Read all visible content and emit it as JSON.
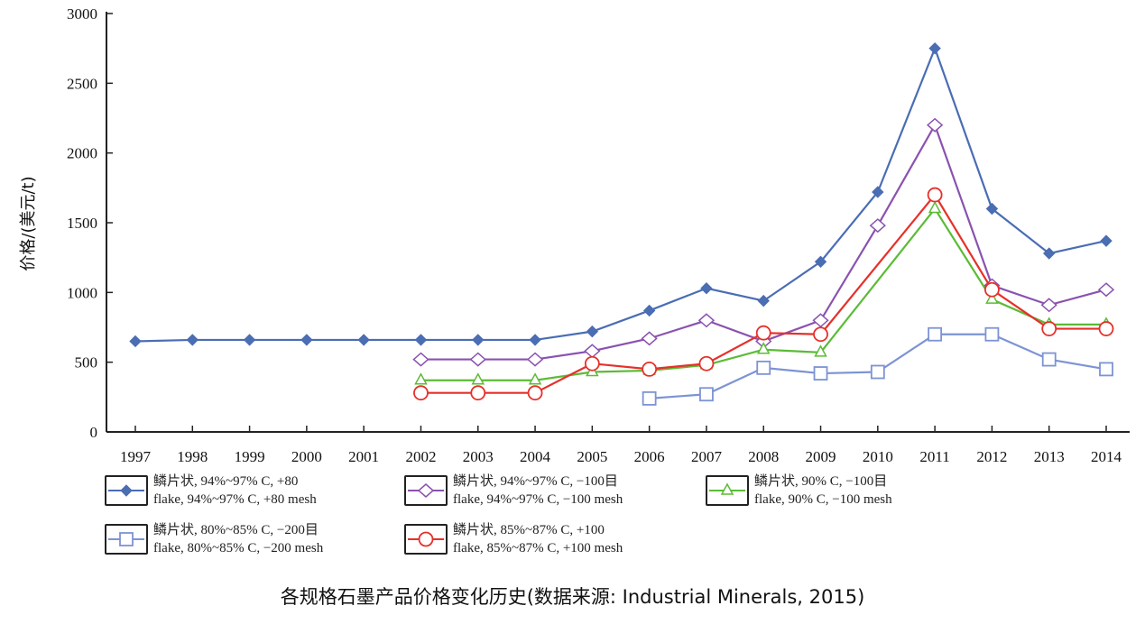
{
  "chart_data": {
    "type": "line",
    "title": "",
    "ylabel": "价格/(美元/t)",
    "xlabel": "",
    "ylim": [
      0,
      3000
    ],
    "yticks": [
      0,
      500,
      1000,
      1500,
      2000,
      2500,
      3000
    ],
    "x": [
      1997,
      1998,
      1999,
      2000,
      2001,
      2002,
      2003,
      2004,
      2005,
      2006,
      2007,
      2008,
      2009,
      2010,
      2011,
      2012,
      2013,
      2014
    ],
    "grid": false,
    "legend_position": "bottom",
    "series": [
      {
        "name_cn": "鳞片状, 94%~97% C, +80",
        "name": "flake, 94%~97% C, +80 mesh",
        "color": "#4a6db3",
        "marker": "filled-diamond",
        "values": [
          650,
          660,
          660,
          660,
          660,
          660,
          660,
          660,
          720,
          870,
          1030,
          940,
          1220,
          1720,
          2750,
          1600,
          1280,
          1370
        ]
      },
      {
        "name_cn": "鳞片状, 94%~97% C, −100目",
        "name": "flake, 94%~97% C, −100 mesh",
        "color": "#8a52b0",
        "marker": "open-diamond",
        "values": [
          null,
          null,
          null,
          null,
          null,
          520,
          520,
          520,
          580,
          670,
          800,
          650,
          800,
          1480,
          2200,
          1050,
          910,
          1020
        ]
      },
      {
        "name_cn": "鳞片状, 90% C, −100目",
        "name": "flake, 90% C, −100 mesh",
        "color": "#5cbb36",
        "marker": "open-triangle",
        "values": [
          null,
          null,
          null,
          null,
          null,
          370,
          370,
          370,
          430,
          440,
          480,
          590,
          570,
          null,
          1600,
          950,
          770,
          770
        ]
      },
      {
        "name_cn": "鳞片状, 80%~85% C, −200目",
        "name": "flake, 80%~85% C, −200 mesh",
        "color": "#7d93d4",
        "marker": "open-square",
        "values": [
          null,
          null,
          null,
          null,
          null,
          null,
          null,
          null,
          null,
          240,
          270,
          460,
          420,
          430,
          700,
          700,
          520,
          450
        ]
      },
      {
        "name_cn": "鳞片状, 85%~87% C, +100",
        "name": "flake, 85%~87% C, +100 mesh",
        "color": "#e6302a",
        "marker": "open-circle",
        "values": [
          null,
          null,
          null,
          null,
          null,
          280,
          280,
          280,
          490,
          450,
          490,
          710,
          700,
          null,
          1700,
          1020,
          740,
          740
        ]
      }
    ]
  },
  "caption": "各规格石墨产品价格变化历史(数据来源: Industrial Minerals, 2015)"
}
